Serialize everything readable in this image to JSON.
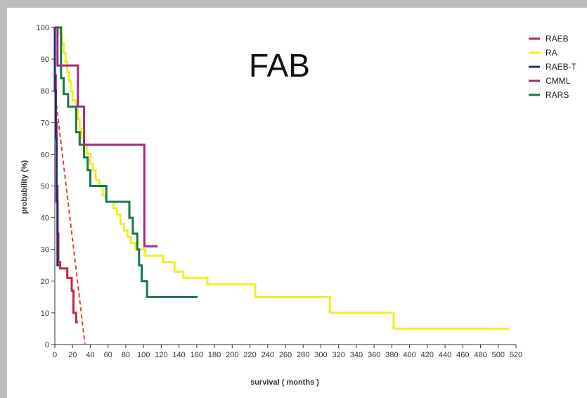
{
  "chart_data": {
    "type": "line",
    "title": "FAB",
    "xlabel": "survival ( months )",
    "ylabel": "probability (%)",
    "xlim": [
      0,
      520
    ],
    "ylim": [
      0,
      100
    ],
    "xticks": [
      0,
      20,
      40,
      60,
      80,
      100,
      120,
      140,
      160,
      180,
      200,
      220,
      240,
      260,
      280,
      300,
      320,
      340,
      360,
      380,
      400,
      420,
      440,
      460,
      480,
      500,
      520
    ],
    "yticks": [
      0,
      10,
      20,
      30,
      40,
      50,
      60,
      70,
      80,
      90,
      100
    ],
    "legend_position": "top-right",
    "series": [
      {
        "name": "RAEB",
        "color": "#c0283c",
        "points": [
          [
            0,
            100
          ],
          [
            0,
            85
          ],
          [
            1,
            85
          ],
          [
            1,
            70
          ],
          [
            2,
            70
          ],
          [
            2,
            50
          ],
          [
            3,
            50
          ],
          [
            3,
            35
          ],
          [
            4,
            35
          ],
          [
            4,
            26
          ],
          [
            6,
            26
          ],
          [
            6,
            24
          ],
          [
            14,
            24
          ],
          [
            14,
            21
          ],
          [
            19,
            21
          ],
          [
            19,
            17
          ],
          [
            21,
            17
          ],
          [
            21,
            10
          ],
          [
            24,
            10
          ],
          [
            24,
            7
          ],
          [
            26,
            7
          ]
        ],
        "trend": [
          [
            0,
            80
          ],
          [
            34,
            0
          ]
        ]
      },
      {
        "name": "RA",
        "color": "#f2ec26",
        "points": [
          [
            0,
            100
          ],
          [
            4,
            100
          ],
          [
            4,
            98
          ],
          [
            8,
            98
          ],
          [
            8,
            95
          ],
          [
            10,
            95
          ],
          [
            10,
            92
          ],
          [
            12,
            92
          ],
          [
            12,
            89
          ],
          [
            14,
            89
          ],
          [
            14,
            86
          ],
          [
            16,
            86
          ],
          [
            16,
            83
          ],
          [
            18,
            83
          ],
          [
            18,
            80
          ],
          [
            20,
            80
          ],
          [
            20,
            77
          ],
          [
            24,
            77
          ],
          [
            24,
            74
          ],
          [
            26,
            74
          ],
          [
            26,
            71
          ],
          [
            28,
            71
          ],
          [
            28,
            68
          ],
          [
            30,
            68
          ],
          [
            30,
            65
          ],
          [
            33,
            65
          ],
          [
            33,
            63
          ],
          [
            36,
            63
          ],
          [
            36,
            60
          ],
          [
            40,
            60
          ],
          [
            40,
            57
          ],
          [
            43,
            57
          ],
          [
            43,
            55
          ],
          [
            46,
            55
          ],
          [
            46,
            52
          ],
          [
            50,
            52
          ],
          [
            50,
            50
          ],
          [
            54,
            50
          ],
          [
            54,
            47
          ],
          [
            58,
            47
          ],
          [
            58,
            45
          ],
          [
            66,
            45
          ],
          [
            66,
            43
          ],
          [
            70,
            43
          ],
          [
            70,
            41
          ],
          [
            74,
            41
          ],
          [
            74,
            38
          ],
          [
            78,
            38
          ],
          [
            78,
            36
          ],
          [
            82,
            36
          ],
          [
            82,
            34
          ],
          [
            86,
            34
          ],
          [
            86,
            32
          ],
          [
            91,
            32
          ],
          [
            91,
            30
          ],
          [
            102,
            30
          ],
          [
            102,
            28
          ],
          [
            122,
            28
          ],
          [
            122,
            26
          ],
          [
            135,
            26
          ],
          [
            135,
            23
          ],
          [
            145,
            23
          ],
          [
            145,
            21
          ],
          [
            172,
            21
          ],
          [
            172,
            19
          ],
          [
            226,
            19
          ],
          [
            226,
            15
          ],
          [
            310,
            15
          ],
          [
            310,
            10
          ],
          [
            382,
            10
          ],
          [
            382,
            5
          ],
          [
            512,
            5
          ]
        ]
      },
      {
        "name": "RAEB-T",
        "color": "#2a2a72",
        "points": [
          [
            0,
            100
          ],
          [
            0,
            80
          ],
          [
            1,
            80
          ],
          [
            1,
            65
          ],
          [
            2,
            65
          ],
          [
            2,
            45
          ],
          [
            3,
            45
          ],
          [
            3,
            25
          ],
          [
            5,
            25
          ]
        ]
      },
      {
        "name": "CMML",
        "color": "#9e2c7e",
        "points": [
          [
            0,
            100
          ],
          [
            3,
            100
          ],
          [
            3,
            88
          ],
          [
            26,
            88
          ],
          [
            26,
            75
          ],
          [
            33,
            75
          ],
          [
            33,
            63
          ],
          [
            101,
            63
          ],
          [
            101,
            31
          ],
          [
            116,
            31
          ]
        ]
      },
      {
        "name": "RARS",
        "color": "#16784a",
        "points": [
          [
            0,
            100
          ],
          [
            7,
            100
          ],
          [
            7,
            84
          ],
          [
            10,
            84
          ],
          [
            10,
            79
          ],
          [
            15,
            79
          ],
          [
            15,
            75
          ],
          [
            24,
            75
          ],
          [
            24,
            67
          ],
          [
            28,
            67
          ],
          [
            28,
            63
          ],
          [
            33,
            63
          ],
          [
            33,
            59
          ],
          [
            37,
            59
          ],
          [
            37,
            55
          ],
          [
            40,
            55
          ],
          [
            40,
            50
          ],
          [
            58,
            50
          ],
          [
            58,
            45
          ],
          [
            84,
            45
          ],
          [
            84,
            40
          ],
          [
            88,
            40
          ],
          [
            88,
            35
          ],
          [
            93,
            35
          ],
          [
            93,
            30
          ],
          [
            95,
            30
          ],
          [
            95,
            25
          ],
          [
            98,
            25
          ],
          [
            98,
            20
          ],
          [
            104,
            20
          ],
          [
            104,
            15
          ],
          [
            161,
            15
          ]
        ]
      }
    ]
  }
}
